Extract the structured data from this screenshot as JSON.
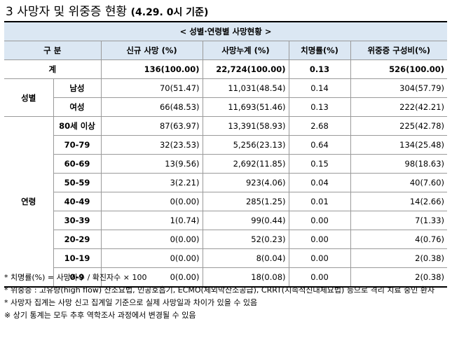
{
  "title": {
    "main": "3 사망자 및 위중증 현황",
    "date": "(4.29. 0시 기준)"
  },
  "table": {
    "caption": "< 성별·연령별 사망현황 >",
    "headers": [
      "구 분",
      "신규 사망      (%)",
      "사망누계      (%)",
      "치명률(%)",
      "위중증    구성비(%)"
    ],
    "total": {
      "label": "계",
      "new": "136(100.00)",
      "cum": "22,724(100.00)",
      "cfr": "0.13",
      "severe": "526(100.00)"
    },
    "groups": [
      {
        "name": "성별",
        "rows": [
          {
            "label": "남성",
            "new": "70(51.47)",
            "cum": "11,031(48.54)",
            "cfr": "0.14",
            "severe": "304(57.79)"
          },
          {
            "label": "여성",
            "new": "66(48.53)",
            "cum": "11,693(51.46)",
            "cfr": "0.13",
            "severe": "222(42.21)"
          }
        ]
      },
      {
        "name": "연령",
        "rows": [
          {
            "label": "80세 이상",
            "new": "87(63.97)",
            "cum": "13,391(58.93)",
            "cfr": "2.68",
            "severe": "225(42.78)"
          },
          {
            "label": "70-79",
            "new": "32(23.53)",
            "cum": "5,256(23.13)",
            "cfr": "0.64",
            "severe": "134(25.48)"
          },
          {
            "label": "60-69",
            "new": "13(9.56)",
            "cum": "2,692(11.85)",
            "cfr": "0.15",
            "severe": "98(18.63)"
          },
          {
            "label": "50-59",
            "new": "3(2.21)",
            "cum": "923(4.06)",
            "cfr": "0.04",
            "severe": "40(7.60)"
          },
          {
            "label": "40-49",
            "new": "0(0.00)",
            "cum": "285(1.25)",
            "cfr": "0.01",
            "severe": "14(2.66)"
          },
          {
            "label": "30-39",
            "new": "1(0.74)",
            "cum": "99(0.44)",
            "cfr": "0.00",
            "severe": "7(1.33)"
          },
          {
            "label": "20-29",
            "new": "0(0.00)",
            "cum": "52(0.23)",
            "cfr": "0.00",
            "severe": "4(0.76)"
          },
          {
            "label": "10-19",
            "new": "0(0.00)",
            "cum": "8(0.04)",
            "cfr": "0.00",
            "severe": "2(0.38)"
          },
          {
            "label": "0-9",
            "new": "0(0.00)",
            "cum": "18(0.08)",
            "cfr": "0.00",
            "severe": "2(0.38)"
          }
        ]
      }
    ]
  },
  "notes": [
    "* 치명률(%) = 사망자수 / 확진자수 × 100",
    "* 위중증 : 고유량(high flow) 산소요법, 인공호흡기, ECMO(체외막산소공급), CRRT(지속적신대체요법) 등으로 격리 치료 중인 환자",
    "* 사망자 집계는 사망 신고 집계일 기준으로 실제 사망일과 차이가 있을 수 있음",
    "※ 상기 통계는 모두 추후 역학조사 과정에서 변경될 수 있음"
  ],
  "colors": {
    "header_bg": "#dbe7f3"
  }
}
